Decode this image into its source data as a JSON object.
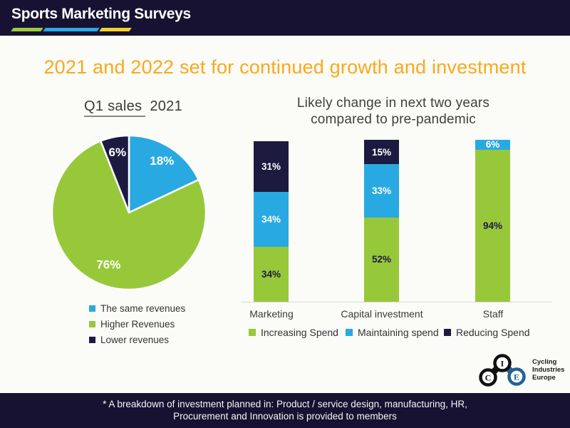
{
  "header": {
    "logo_text": "Sports Marketing Surveys",
    "stripe_colors": [
      "#9CCB3B",
      "#2BA9E1",
      "#F5D327"
    ]
  },
  "title": "2021 and 2022 set for continued growth and investment",
  "colors": {
    "navy": "#1D1A40",
    "green": "#97C83A",
    "blue": "#29A9E1",
    "orange": "#F9A91C",
    "header_navy": "#171231"
  },
  "chart_data": [
    {
      "type": "pie",
      "title": "Q1 sales 2021",
      "title_parts": {
        "underlined": "Q1 sales",
        "rest": "2021"
      },
      "labels": [
        "The same revenues",
        "Higher Revenues",
        "Lower revenues"
      ],
      "values": [
        18,
        76,
        6
      ],
      "unit": "%",
      "colors": [
        "#29A9E1",
        "#97C83A",
        "#1D1A40"
      ],
      "start_angle_deg": 0,
      "direction": "clockwise",
      "legend_position": "bottom-left"
    },
    {
      "type": "bar",
      "stacked": true,
      "title": "Likely change in next two years compared to pre-pandemic",
      "title_lines": [
        "Likely change in next two years",
        "compared to pre-pandemic"
      ],
      "categories": [
        "Marketing",
        "Capital investment",
        "Staff"
      ],
      "series": [
        {
          "name": "Increasing Spend",
          "color": "#97C83A",
          "values": [
            34,
            52,
            94
          ]
        },
        {
          "name": "Maintaining spend",
          "color": "#29A9E1",
          "values": [
            34,
            33,
            6
          ]
        },
        {
          "name": "Reducing Spend",
          "color": "#1D1A40",
          "values": [
            31,
            15,
            0
          ]
        }
      ],
      "unit": "%",
      "value_labels": true,
      "ylim": [
        0,
        100
      ],
      "grid": false,
      "legend_position": "bottom"
    }
  ],
  "cie_logo": {
    "letters": [
      "C",
      "I",
      "E"
    ],
    "text_lines": [
      "Cycling",
      "Industries",
      "Europe"
    ],
    "dark": "#111111",
    "blue": "#1F6396"
  },
  "footer": {
    "line1": "* A breakdown of investment planned in: Product / service design, manufacturing, HR,",
    "line2": "Procurement and Innovation is provided to members"
  }
}
